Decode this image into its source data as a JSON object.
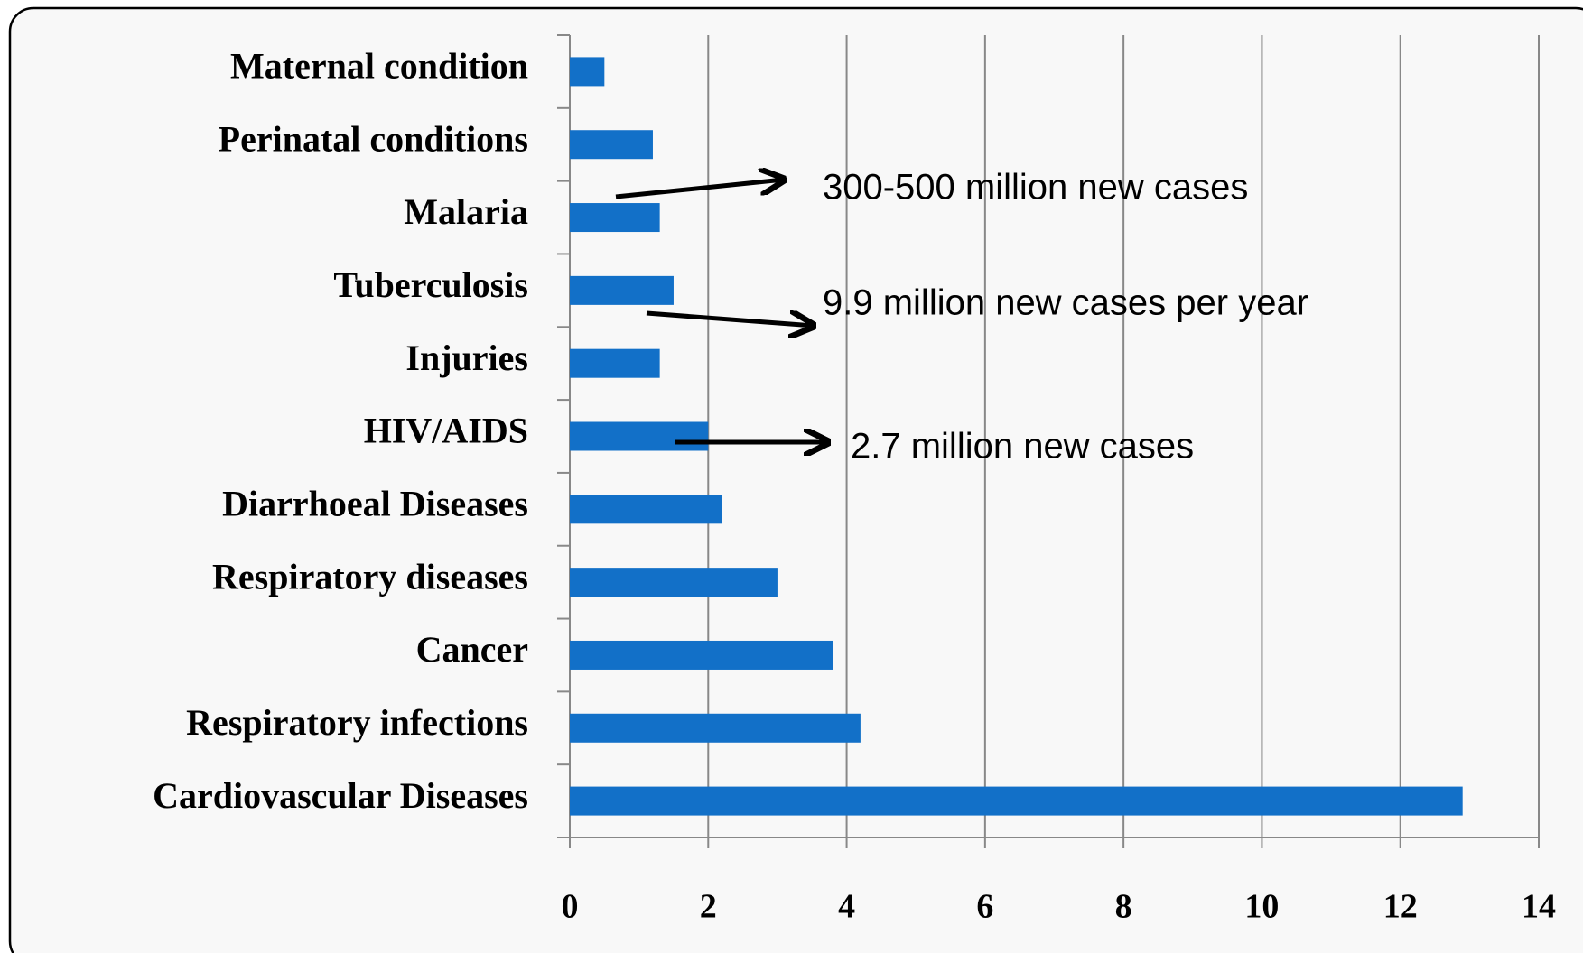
{
  "chart_data": {
    "type": "bar",
    "orientation": "horizontal",
    "categories": [
      "Maternal condition",
      "Perinatal conditions",
      "Malaria",
      "Tuberculosis",
      "Injuries",
      "HIV/AIDS",
      "Diarrhoeal Diseases",
      "Respiratory diseases",
      "Cancer",
      "Respiratory infections",
      "Cardiovascular Diseases"
    ],
    "values": [
      0.5,
      1.2,
      1.3,
      1.5,
      1.3,
      2.0,
      2.2,
      3.0,
      3.8,
      4.2,
      12.9
    ],
    "color": "#1270c8",
    "xlim": [
      0,
      14
    ],
    "xticks": [
      0,
      2,
      4,
      6,
      8,
      10,
      12,
      14
    ],
    "grid": true,
    "annotations": [
      "300-500 million new cases",
      "9.9 million new cases per year",
      "2.7 million new cases"
    ]
  }
}
